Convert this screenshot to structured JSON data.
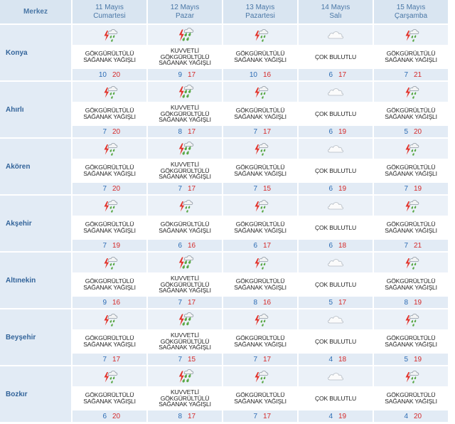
{
  "header": {
    "location_label": "Merkez",
    "days": [
      {
        "date": "11 Mayıs",
        "weekday": "Cumartesi"
      },
      {
        "date": "12 Mayıs",
        "weekday": "Pazar"
      },
      {
        "date": "13 Mayıs",
        "weekday": "Pazartesi"
      },
      {
        "date": "14 Mayıs",
        "weekday": "Salı"
      },
      {
        "date": "15 Mayıs",
        "weekday": "Çarşamba"
      }
    ]
  },
  "colors": {
    "header_background": "#d9e5f1",
    "header_text": "#4a77a6",
    "city_background": "#e2ebf5",
    "icon_row_background": "#ebf1f8",
    "city_text": "#33649a",
    "min_temperature": "#2c6cb4",
    "max_temperature": "#d52b2b",
    "lightning": "#e2332b",
    "rain": "#59a846"
  },
  "rows": [
    {
      "city": "Konya",
      "forecasts": [
        {
          "icon": "thunderstorm-rain-icon",
          "desc": [
            "GÖKGÜRÜLTÜLÜ",
            "SAĞANAK YAĞIŞLI"
          ],
          "min": 10,
          "max": 20
        },
        {
          "icon": "heavy-thunderstorm-rain-icon",
          "desc": [
            "KUVVETLİ",
            "GÖKGÜRÜLTÜLÜ",
            "SAĞANAK YAĞIŞLI"
          ],
          "min": 9,
          "max": 17
        },
        {
          "icon": "thunderstorm-rain-icon",
          "desc": [
            "GÖKGÜRÜLTÜLÜ",
            "SAĞANAK YAĞIŞLI"
          ],
          "min": 10,
          "max": 16
        },
        {
          "icon": "cloudy-icon",
          "desc": [
            "ÇOK BULUTLU"
          ],
          "min": 6,
          "max": 17
        },
        {
          "icon": "thunderstorm-rain-icon",
          "desc": [
            "GÖKGÜRÜLTÜLÜ",
            "SAĞANAK YAĞIŞLI"
          ],
          "min": 7,
          "max": 21
        }
      ]
    },
    {
      "city": "Ahırlı",
      "forecasts": [
        {
          "icon": "thunderstorm-rain-icon",
          "desc": [
            "GÖKGÜRÜLTÜLÜ",
            "SAĞANAK YAĞIŞLI"
          ],
          "min": 7,
          "max": 20
        },
        {
          "icon": "heavy-thunderstorm-rain-icon",
          "desc": [
            "KUVVETLİ",
            "GÖKGÜRÜLTÜLÜ",
            "SAĞANAK YAĞIŞLI"
          ],
          "min": 8,
          "max": 17
        },
        {
          "icon": "thunderstorm-rain-icon",
          "desc": [
            "GÖKGÜRÜLTÜLÜ",
            "SAĞANAK YAĞIŞLI"
          ],
          "min": 7,
          "max": 17
        },
        {
          "icon": "cloudy-icon",
          "desc": [
            "ÇOK BULUTLU"
          ],
          "min": 6,
          "max": 19
        },
        {
          "icon": "thunderstorm-rain-icon",
          "desc": [
            "GÖKGÜRÜLTÜLÜ",
            "SAĞANAK YAĞIŞLI"
          ],
          "min": 5,
          "max": 20
        }
      ]
    },
    {
      "city": "Akören",
      "forecasts": [
        {
          "icon": "thunderstorm-rain-icon",
          "desc": [
            "GÖKGÜRÜLTÜLÜ",
            "SAĞANAK YAĞIŞLI"
          ],
          "min": 7,
          "max": 20
        },
        {
          "icon": "heavy-thunderstorm-rain-icon",
          "desc": [
            "KUVVETLİ",
            "GÖKGÜRÜLTÜLÜ",
            "SAĞANAK YAĞIŞLI"
          ],
          "min": 7,
          "max": 17
        },
        {
          "icon": "thunderstorm-rain-icon",
          "desc": [
            "GÖKGÜRÜLTÜLÜ",
            "SAĞANAK YAĞIŞLI"
          ],
          "min": 7,
          "max": 15
        },
        {
          "icon": "cloudy-icon",
          "desc": [
            "ÇOK BULUTLU"
          ],
          "min": 6,
          "max": 19
        },
        {
          "icon": "thunderstorm-rain-icon",
          "desc": [
            "GÖKGÜRÜLTÜLÜ",
            "SAĞANAK YAĞIŞLI"
          ],
          "min": 7,
          "max": 19
        }
      ]
    },
    {
      "city": "Akşehir",
      "forecasts": [
        {
          "icon": "thunderstorm-rain-icon",
          "desc": [
            "GÖKGÜRÜLTÜLÜ",
            "SAĞANAK YAĞIŞLI"
          ],
          "min": 7,
          "max": 19
        },
        {
          "icon": "thunderstorm-rain-icon",
          "desc": [
            "GÖKGÜRÜLTÜLÜ",
            "SAĞANAK YAĞIŞLI"
          ],
          "min": 6,
          "max": 16
        },
        {
          "icon": "thunderstorm-rain-icon",
          "desc": [
            "GÖKGÜRÜLTÜLÜ",
            "SAĞANAK YAĞIŞLI"
          ],
          "min": 6,
          "max": 17
        },
        {
          "icon": "cloudy-icon",
          "desc": [
            "ÇOK BULUTLU"
          ],
          "min": 6,
          "max": 18
        },
        {
          "icon": "thunderstorm-rain-icon",
          "desc": [
            "GÖKGÜRÜLTÜLÜ",
            "SAĞANAK YAĞIŞLI"
          ],
          "min": 7,
          "max": 21
        }
      ]
    },
    {
      "city": "Altınekin",
      "forecasts": [
        {
          "icon": "thunderstorm-rain-icon",
          "desc": [
            "GÖKGÜRÜLTÜLÜ",
            "SAĞANAK YAĞIŞLI"
          ],
          "min": 9,
          "max": 16
        },
        {
          "icon": "heavy-thunderstorm-rain-icon",
          "desc": [
            "KUVVETLİ",
            "GÖKGÜRÜLTÜLÜ",
            "SAĞANAK YAĞIŞLI"
          ],
          "min": 7,
          "max": 17
        },
        {
          "icon": "thunderstorm-rain-icon",
          "desc": [
            "GÖKGÜRÜLTÜLÜ",
            "SAĞANAK YAĞIŞLI"
          ],
          "min": 8,
          "max": 16
        },
        {
          "icon": "cloudy-icon",
          "desc": [
            "ÇOK BULUTLU"
          ],
          "min": 5,
          "max": 17
        },
        {
          "icon": "thunderstorm-rain-icon",
          "desc": [
            "GÖKGÜRÜLTÜLÜ",
            "SAĞANAK YAĞIŞLI"
          ],
          "min": 8,
          "max": 19
        }
      ]
    },
    {
      "city": "Beyşehir",
      "forecasts": [
        {
          "icon": "thunderstorm-rain-icon",
          "desc": [
            "GÖKGÜRÜLTÜLÜ",
            "SAĞANAK YAĞIŞLI"
          ],
          "min": 7,
          "max": 17
        },
        {
          "icon": "heavy-thunderstorm-rain-icon",
          "desc": [
            "KUVVETLİ",
            "GÖKGÜRÜLTÜLÜ",
            "SAĞANAK YAĞIŞLI"
          ],
          "min": 7,
          "max": 15
        },
        {
          "icon": "thunderstorm-rain-icon",
          "desc": [
            "GÖKGÜRÜLTÜLÜ",
            "SAĞANAK YAĞIŞLI"
          ],
          "min": 7,
          "max": 17
        },
        {
          "icon": "cloudy-icon",
          "desc": [
            "ÇOK BULUTLU"
          ],
          "min": 4,
          "max": 18
        },
        {
          "icon": "thunderstorm-rain-icon",
          "desc": [
            "GÖKGÜRÜLTÜLÜ",
            "SAĞANAK YAĞIŞLI"
          ],
          "min": 5,
          "max": 19
        }
      ]
    },
    {
      "city": "Bozkır",
      "forecasts": [
        {
          "icon": "thunderstorm-rain-icon",
          "desc": [
            "GÖKGÜRÜLTÜLÜ",
            "SAĞANAK YAĞIŞLI"
          ],
          "min": 6,
          "max": 20
        },
        {
          "icon": "heavy-thunderstorm-rain-icon",
          "desc": [
            "KUVVETLİ",
            "GÖKGÜRÜLTÜLÜ",
            "SAĞANAK YAĞIŞLI"
          ],
          "min": 8,
          "max": 17
        },
        {
          "icon": "thunderstorm-rain-icon",
          "desc": [
            "GÖKGÜRÜLTÜLÜ",
            "SAĞANAK YAĞIŞLI"
          ],
          "min": 7,
          "max": 17
        },
        {
          "icon": "cloudy-icon",
          "desc": [
            "ÇOK BULUTLU"
          ],
          "min": 4,
          "max": 19
        },
        {
          "icon": "thunderstorm-rain-icon",
          "desc": [
            "GÖKGÜRÜLTÜLÜ",
            "SAĞANAK YAĞIŞLI"
          ],
          "min": 4,
          "max": 20
        }
      ]
    }
  ]
}
